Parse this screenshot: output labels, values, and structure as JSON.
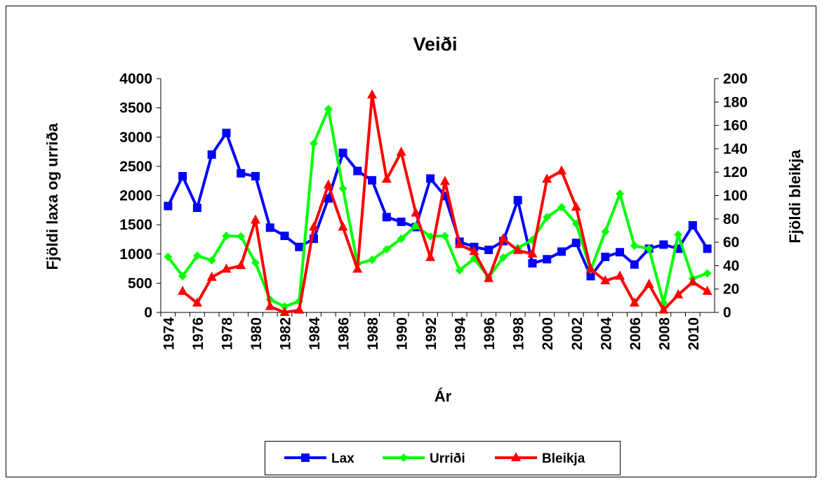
{
  "chart_data": {
    "type": "line",
    "title": "Veiði",
    "x_label": "Ár",
    "y_label": "Fjöldi laxa og urriða",
    "y2_label": "Fjöldi bleikja",
    "categories": [
      1974,
      null,
      1976,
      null,
      1978,
      null,
      1980,
      null,
      1982,
      null,
      1984,
      null,
      1986,
      null,
      1988,
      null,
      1990,
      null,
      1992,
      null,
      1994,
      null,
      1996,
      null,
      1998,
      null,
      2000,
      null,
      2002,
      null,
      2004,
      null,
      2006,
      null,
      2008,
      null,
      2010,
      null
    ],
    "series": [
      {
        "name": "Lax",
        "color": "#0000ff",
        "marker": "square",
        "values": [
          1820,
          2330,
          1790,
          2700,
          3070,
          2380,
          2330,
          1450,
          1310,
          1120,
          1260,
          1950,
          2730,
          2420,
          2260,
          1630,
          1550,
          1460,
          2290,
          1990,
          1210,
          1120,
          1070,
          1220,
          1920,
          840,
          910,
          1040,
          1190,
          620,
          950,
          1030,
          820,
          1090,
          1160,
          1090,
          1490,
          1090
        ]
      },
      {
        "name": "Urriði",
        "color": "#00ff00",
        "marker": "diamond",
        "values": [
          950,
          620,
          970,
          890,
          1310,
          1300,
          850,
          220,
          100,
          190,
          2890,
          3480,
          2120,
          830,
          900,
          1080,
          1260,
          1480,
          1300,
          1310,
          720,
          920,
          600,
          940,
          1100,
          1240,
          1630,
          1800,
          1520,
          730,
          1380,
          2030,
          1140,
          1090,
          160,
          1330,
          580,
          670
        ]
      },
      {
        "name": "Bleikja",
        "color": "#ff0000",
        "marker": "triangle",
        "axis": "y2",
        "values": [
          null,
          18,
          8,
          30,
          37,
          40,
          79,
          5,
          0,
          2,
          73,
          109,
          73,
          37,
          186,
          114,
          137,
          85,
          47,
          112,
          58,
          52,
          29,
          63,
          53,
          50,
          114,
          121,
          90,
          37,
          27,
          31,
          8,
          24,
          2,
          15,
          26,
          18
        ]
      }
    ],
    "ylim": [
      0,
      4000
    ],
    "yticks": [
      0,
      500,
      1000,
      1500,
      2000,
      2500,
      3000,
      3500,
      4000
    ],
    "y2lim": [
      0,
      200
    ],
    "y2ticks": [
      0,
      20,
      40,
      60,
      80,
      100,
      120,
      140,
      160,
      180,
      200
    ],
    "legend": "bottom"
  }
}
